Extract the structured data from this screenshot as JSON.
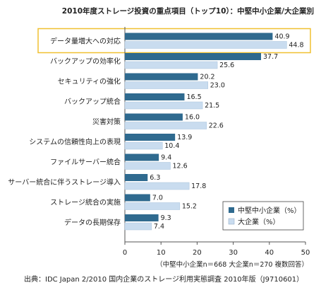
{
  "chart_data": {
    "type": "bar",
    "orientation": "horizontal",
    "title": "2010年度ストレージ投資の重点項目（トップ10）：中堅中小企業/大企業別",
    "categories": [
      "データ量増大への対応",
      "バックアップの効率化",
      "セキュリティの強化",
      "バックアップ統合",
      "災害対策",
      "システムの信頼性向上の表現",
      "ファイルサーバー統合",
      "サーバー統合に伴うストレージ導入",
      "ストレージ統合の実施",
      "データの長期保存"
    ],
    "series": [
      {
        "name": "中堅中小企業（%）",
        "color": "#2f6a8f",
        "values": [
          40.9,
          37.7,
          20.2,
          16.5,
          16.0,
          13.9,
          9.4,
          6.3,
          7.0,
          9.3
        ]
      },
      {
        "name": "大企業（%）",
        "color": "#c9dcef",
        "values": [
          44.8,
          25.6,
          23.0,
          21.5,
          22.6,
          10.4,
          12.6,
          17.8,
          15.2,
          7.4
        ]
      }
    ],
    "xlim": [
      0,
      50
    ],
    "xticks": [
      0,
      10,
      20,
      30,
      40,
      50
    ],
    "highlight_category": 0,
    "highlight_color": "#f0c030",
    "legend_position": "bottom-right",
    "note": "（中堅中小企業n＝668 大企業n＝270 複数回答）",
    "source": "出典：IDC Japan 2/2010 国内企業のストレージ利用実態調査 2010年版（J9710601）"
  }
}
